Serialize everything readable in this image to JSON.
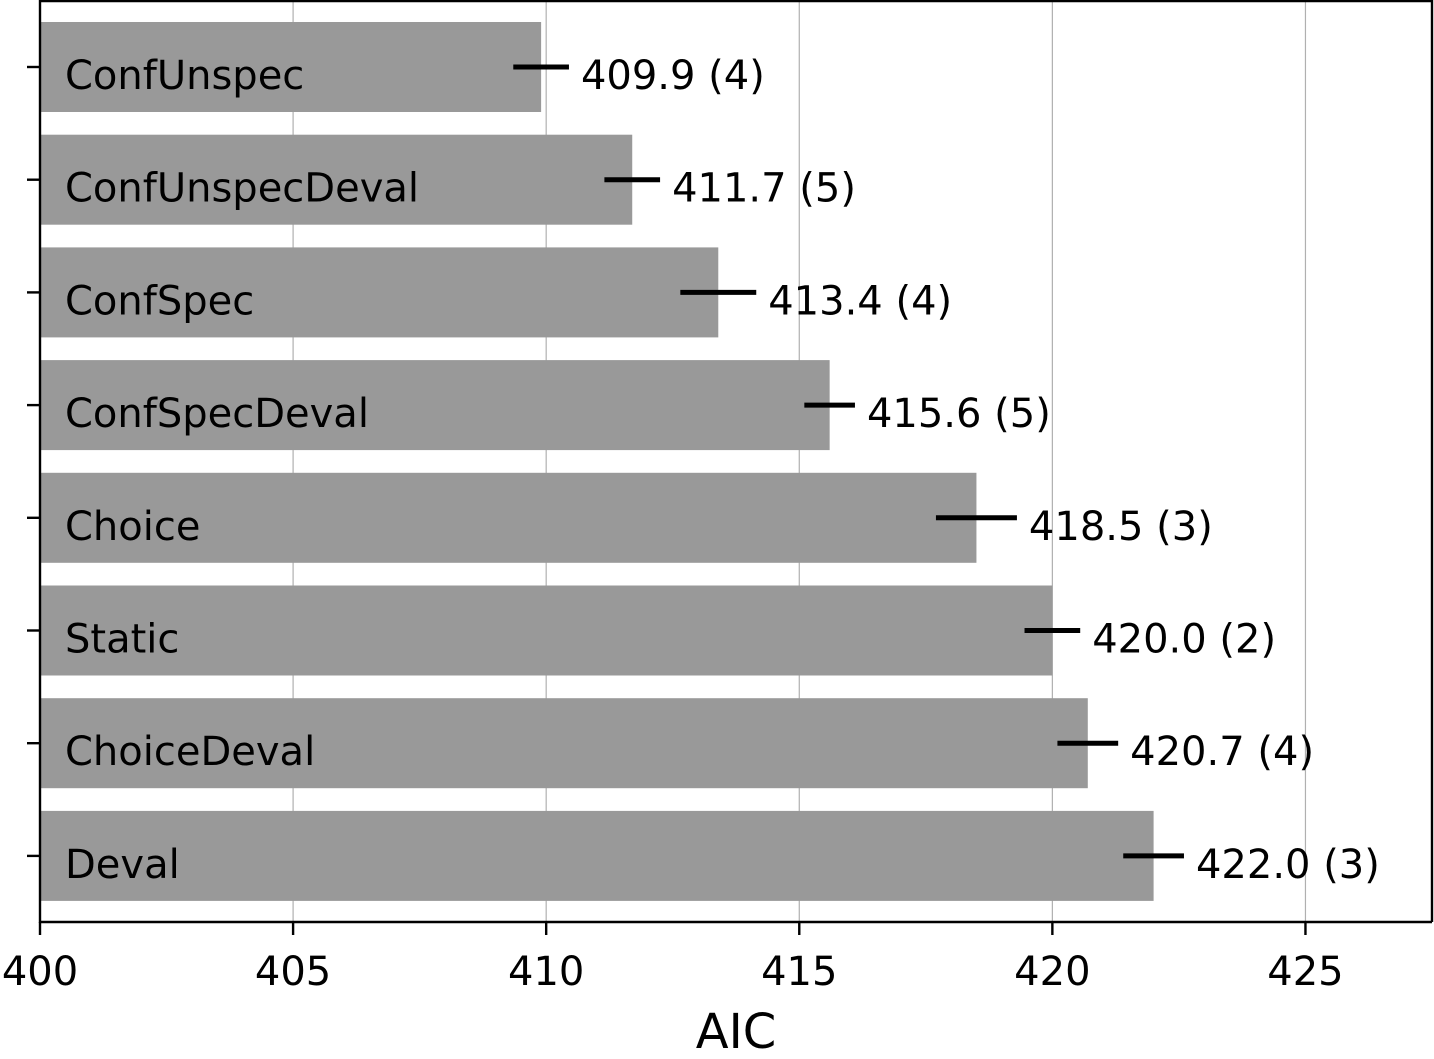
{
  "chart_data": {
    "type": "bar",
    "orientation": "horizontal",
    "xlabel": "AIC",
    "ylabel": "",
    "title": "",
    "xlim": [
      400,
      427.5
    ],
    "xticks": [
      400,
      405,
      410,
      415,
      420,
      425
    ],
    "xtick_labels": [
      "400",
      "405",
      "410",
      "415",
      "420",
      "425"
    ],
    "grid": "vertical",
    "bar_color": "#999999",
    "categories": [
      "ConfUnspec",
      "ConfUnspecDeval",
      "ConfSpec",
      "ConfSpecDeval",
      "Choice",
      "Static",
      "ChoiceDeval",
      "Deval"
    ],
    "values": [
      409.9,
      411.7,
      413.4,
      415.6,
      418.5,
      420.0,
      420.7,
      422.0
    ],
    "errors": [
      0.55,
      0.55,
      0.75,
      0.5,
      0.8,
      0.55,
      0.6,
      0.6
    ],
    "value_labels": [
      "409.9 (4)",
      "411.7 (5)",
      "413.4 (4)",
      "415.6 (5)",
      "418.5 (3)",
      "420.0 (2)",
      "420.7 (4)",
      "422.0 (3)"
    ]
  }
}
